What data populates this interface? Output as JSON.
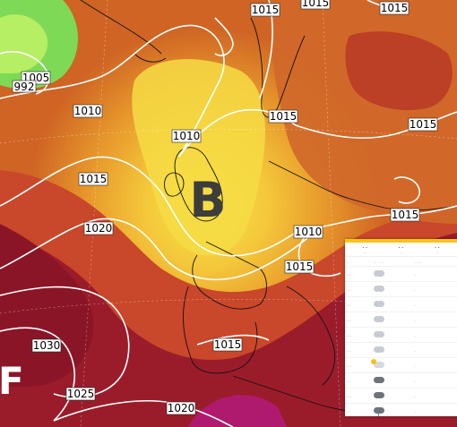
{
  "map": {
    "isobars": [
      {
        "label": "1015"
      },
      {
        "label": "1015"
      },
      {
        "label": "1015"
      },
      {
        "label": "1005"
      },
      {
        "label": "992"
      },
      {
        "label": "1010"
      },
      {
        "label": "1010"
      },
      {
        "label": "1015"
      },
      {
        "label": "1015"
      },
      {
        "label": "1015"
      },
      {
        "label": "1020"
      },
      {
        "label": "1015"
      },
      {
        "label": "1010"
      },
      {
        "label": "1015"
      },
      {
        "label": "1015"
      },
      {
        "label": "1030"
      },
      {
        "label": "1025"
      },
      {
        "label": "1020"
      }
    ],
    "low_center": {
      "letter": "B",
      "color": "#3d3d3d"
    },
    "high_center": {
      "letter": "F",
      "color": "#ffffff"
    },
    "colors": {
      "low": "#7ed957",
      "mid": "#f5c33a",
      "high": "#a31e34",
      "extreme": "#b01a6e",
      "isobar": "#ffffff"
    }
  },
  "panel": {
    "summary": [
      {
        "top": "∘ ∘",
        "bottom": "..."
      },
      {
        "top": "∘ ∘",
        "bottom": ".."
      },
      {
        "top": "∘ ∘",
        "bottom": ".."
      }
    ],
    "columns": {
      "time": "...",
      "weather": "... .. ...",
      "temp": "........"
    },
    "rows": [
      {
        "time": "..:..",
        "icon": "cloud-icon",
        "temp": ".."
      },
      {
        "time": "..:..",
        "icon": "cloud-icon",
        "temp": ".."
      },
      {
        "time": "..:..",
        "icon": "cloud-icon",
        "temp": ".."
      },
      {
        "time": "..:..",
        "icon": "cloud-icon",
        "temp": ".."
      },
      {
        "time": "..:..",
        "icon": "cloud-icon",
        "temp": ".."
      },
      {
        "time": "..:..",
        "icon": "cloud-icon",
        "temp": ".."
      },
      {
        "time": "..:..",
        "icon": "partly-sunny-icon",
        "temp": ".."
      },
      {
        "time": "..:..",
        "icon": "dark-cloud-icon",
        "temp": ".."
      },
      {
        "time": "..:..",
        "icon": "dark-cloud-icon",
        "temp": ".."
      },
      {
        "time": "..:..",
        "icon": "rain-cloud-icon",
        "temp": ".."
      }
    ]
  }
}
